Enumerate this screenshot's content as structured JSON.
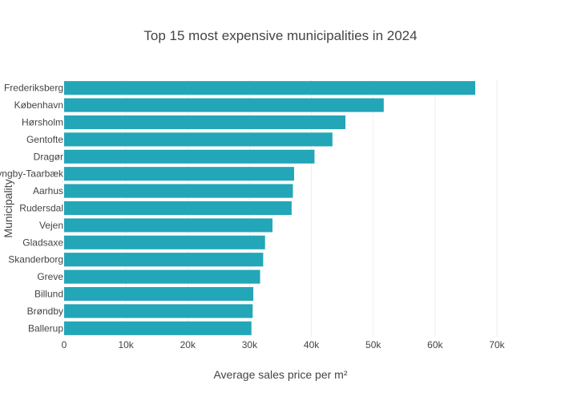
{
  "chart_data": {
    "type": "bar",
    "orientation": "horizontal",
    "title": "Top 15 most expensive municipalities in 2024",
    "xlabel": "Average sales price per m²",
    "ylabel": "Municipality",
    "xlim": [
      0,
      70000
    ],
    "x_ticks": [
      0,
      10000,
      20000,
      30000,
      40000,
      50000,
      60000,
      70000
    ],
    "x_tick_labels": [
      "0",
      "10k",
      "20k",
      "30k",
      "40k",
      "50k",
      "60k",
      "70k"
    ],
    "grid": true,
    "categories": [
      "Frederiksberg",
      "København",
      "Hørsholm",
      "Gentofte",
      "Dragør",
      "Lyngby-Taarbæk",
      "Aarhus",
      "Rudersdal",
      "Vejen",
      "Gladsaxe",
      "Skanderborg",
      "Greve",
      "Billund",
      "Brøndby",
      "Ballerup"
    ],
    "values": [
      66500,
      51700,
      45500,
      43400,
      40500,
      37200,
      37000,
      36800,
      33700,
      32500,
      32200,
      31700,
      30600,
      30500,
      30300
    ],
    "colors": {
      "bar": "#22a6b8"
    }
  }
}
